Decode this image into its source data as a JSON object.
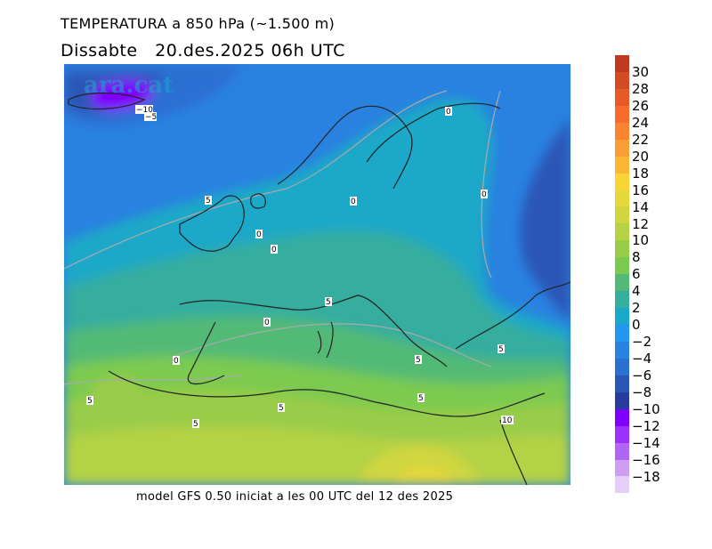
{
  "title": "TEMPERATURA a 850 hPa (~1.500 m)",
  "subtitle": "Dissabte   20.des.2025 06h UTC",
  "footer": "model GFS 0.50 iniciat a les 00 UTC del 12 des 2025",
  "watermark": "ara.cat",
  "colorbar": {
    "labels": [
      "30",
      "28",
      "26",
      "24",
      "22",
      "20",
      "18",
      "16",
      "14",
      "12",
      "10",
      "8",
      "6",
      "4",
      "2",
      "0",
      "−2",
      "−4",
      "−6",
      "−8",
      "−10",
      "−12",
      "−14",
      "−16",
      "−18"
    ],
    "colors": [
      "#bf3a20",
      "#d44a22",
      "#e65a27",
      "#f66c2a",
      "#fa8430",
      "#fa9d35",
      "#fbb632",
      "#f8d535",
      "#e5d73c",
      "#cfd63f",
      "#b4d244",
      "#99cc48",
      "#7bca50",
      "#52ba76",
      "#35ad9f",
      "#1aa8c8",
      "#2196f3",
      "#2a82e0",
      "#2b6fd2",
      "#2a56b8",
      "#283b9e",
      "#7f00ff",
      "#9b30ff",
      "#b266f5",
      "#cf9ef2",
      "#e3cffa"
    ]
  },
  "contour_labels": [
    "0",
    "0",
    "0",
    "0",
    "0",
    "0",
    "0",
    "5",
    "5",
    "5",
    "5",
    "5",
    "5",
    "5",
    "5",
    "10",
    "−10",
    "−5"
  ]
}
